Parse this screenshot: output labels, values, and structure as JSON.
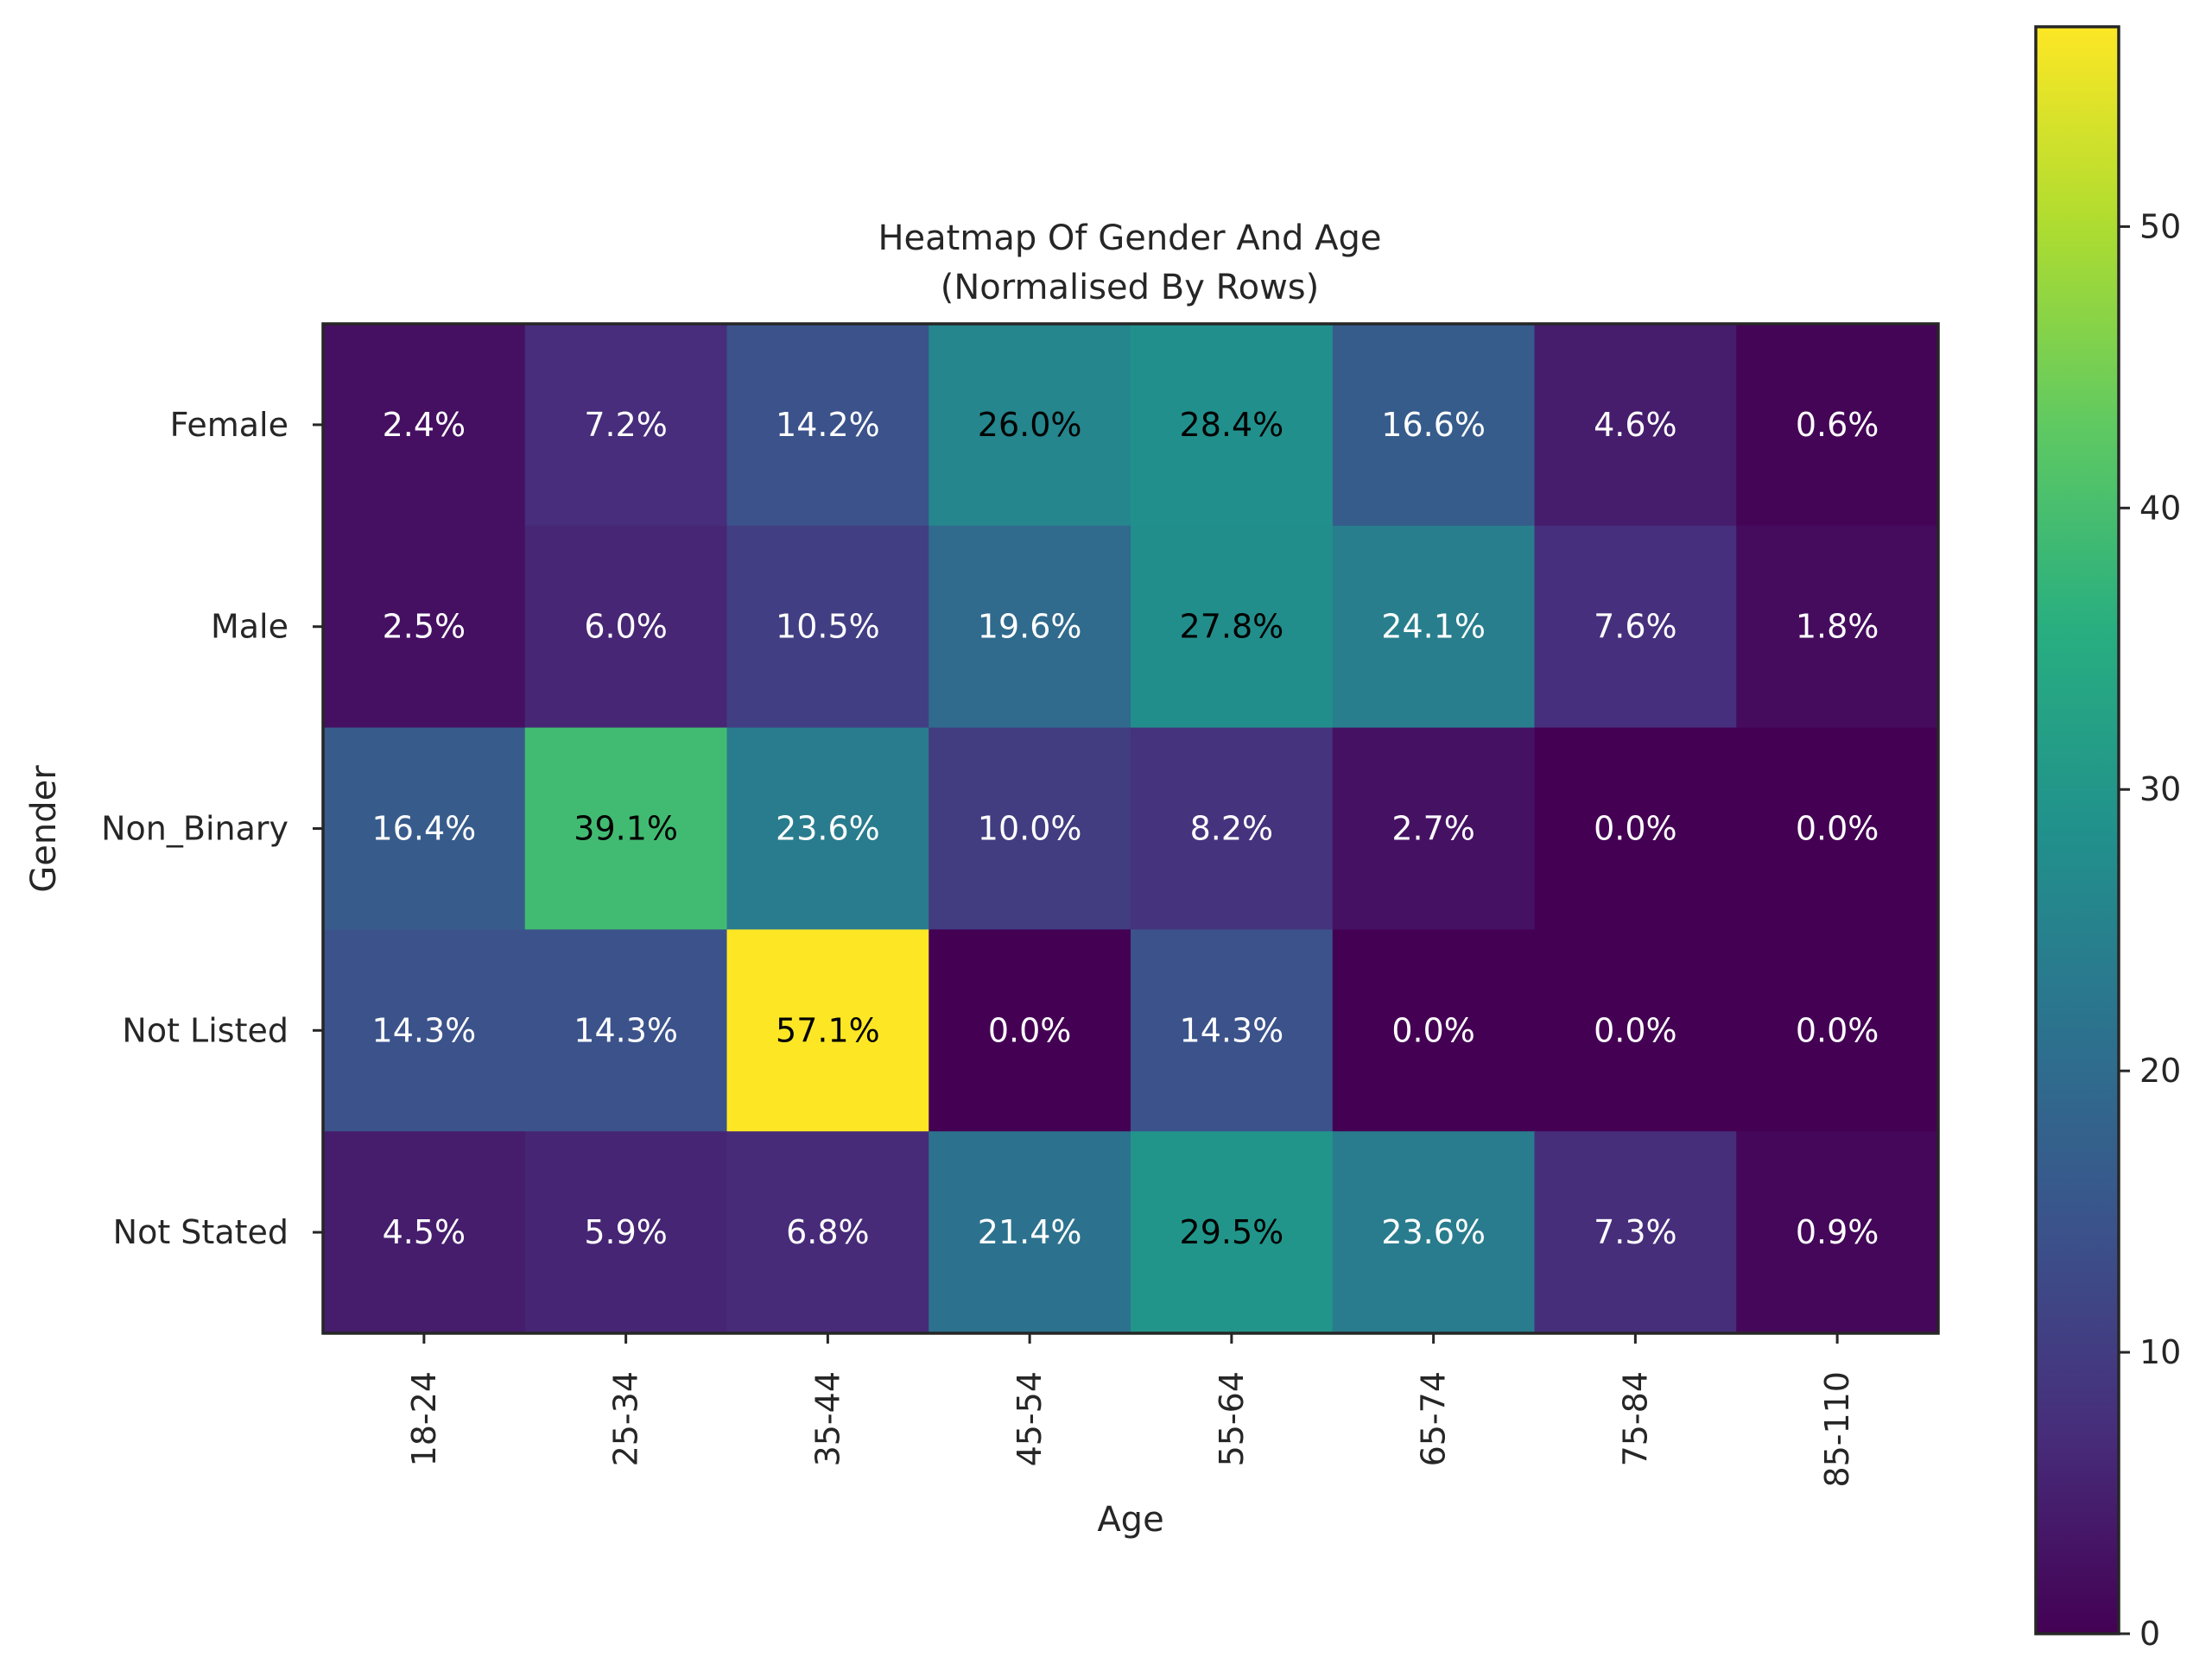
{
  "chart_data": {
    "type": "heatmap",
    "title": [
      "Heatmap Of Gender And Age",
      "(Normalised By Rows)"
    ],
    "xlabel": "Age",
    "ylabel": "Gender",
    "columns": [
      "18-24",
      "25-34",
      "35-44",
      "45-54",
      "55-64",
      "65-74",
      "75-84",
      "85-110"
    ],
    "rows": [
      "Female",
      "Male",
      "Non_Binary",
      "Not Listed",
      "Not Stated"
    ],
    "values": [
      [
        2.4,
        7.2,
        14.2,
        26.0,
        28.4,
        16.6,
        4.6,
        0.6
      ],
      [
        2.5,
        6.0,
        10.5,
        19.6,
        27.8,
        24.1,
        7.6,
        1.8
      ],
      [
        16.4,
        39.1,
        23.6,
        10.0,
        8.2,
        2.7,
        0.0,
        0.0
      ],
      [
        14.3,
        14.3,
        57.1,
        0.0,
        14.3,
        0.0,
        0.0,
        0.0
      ],
      [
        4.5,
        5.9,
        6.8,
        21.4,
        29.5,
        23.6,
        7.3,
        0.9
      ]
    ],
    "value_format": "percent_one_decimal",
    "colormap": "viridis",
    "colorbar": {
      "range": [
        0,
        57.1
      ],
      "ticks": [
        0,
        10,
        20,
        30,
        40,
        50
      ]
    },
    "label_color_dark": "#000000",
    "label_color_light": "#ffffff",
    "grid": false,
    "legend": "colorbar-right"
  }
}
